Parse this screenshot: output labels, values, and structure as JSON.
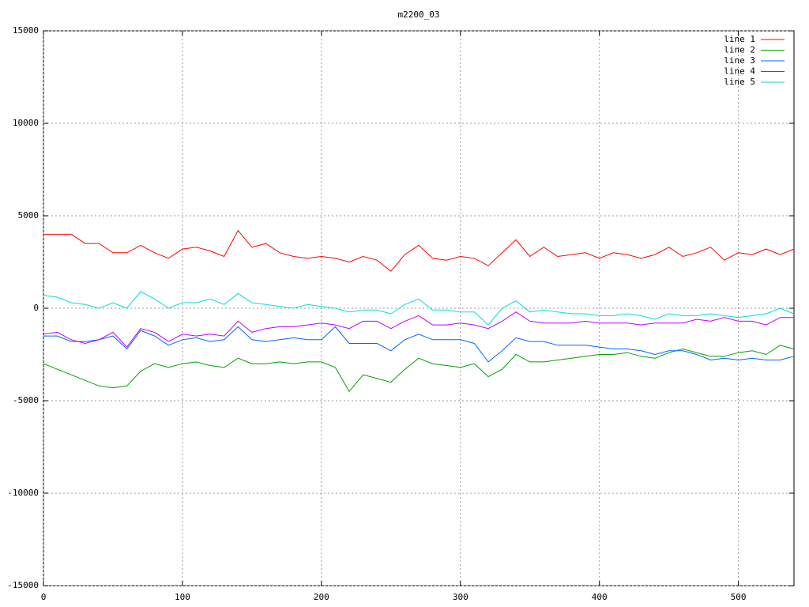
{
  "chart_data": {
    "type": "line",
    "title": "m2200_03",
    "x": [
      0,
      10,
      20,
      30,
      40,
      50,
      60,
      70,
      80,
      90,
      100,
      110,
      120,
      130,
      140,
      150,
      160,
      170,
      180,
      190,
      200,
      210,
      220,
      230,
      240,
      250,
      260,
      270,
      280,
      290,
      300,
      310,
      320,
      330,
      340,
      350,
      360,
      370,
      380,
      390,
      400,
      410,
      420,
      430,
      440,
      450,
      460,
      470,
      480,
      490,
      500,
      510,
      520,
      530,
      540
    ],
    "series": [
      {
        "name": "line 1",
        "color": "#ff0000",
        "values": [
          4000,
          4000,
          4000,
          3500,
          3500,
          3000,
          3000,
          3400,
          3000,
          2700,
          3200,
          3300,
          3100,
          2800,
          4200,
          3300,
          3500,
          3000,
          2800,
          2700,
          2800,
          2700,
          2500,
          2800,
          2600,
          2000,
          2900,
          3400,
          2700,
          2600,
          2800,
          2700,
          2300,
          3000,
          3700,
          2800,
          3300,
          2800,
          2900,
          3000,
          2700,
          3000,
          2900,
          2700,
          2900,
          3300,
          2800,
          3000,
          3300,
          2600,
          3000,
          2900,
          3200,
          2900,
          3200
        ]
      },
      {
        "name": "line 2",
        "color": "#00a000",
        "values": [
          -3000,
          -3300,
          -3600,
          -3900,
          -4200,
          -4300,
          -4200,
          -3400,
          -3000,
          -3200,
          -3000,
          -2900,
          -3100,
          -3200,
          -2700,
          -3000,
          -3000,
          -2900,
          -3000,
          -2900,
          -2900,
          -3200,
          -4500,
          -3600,
          -3800,
          -4000,
          -3300,
          -2700,
          -3000,
          -3100,
          -3200,
          -3000,
          -3700,
          -3300,
          -2500,
          -2900,
          -2900,
          -2800,
          -2700,
          -2600,
          -2500,
          -2500,
          -2400,
          -2600,
          -2700,
          -2400,
          -2200,
          -2400,
          -2600,
          -2600,
          -2400,
          -2300,
          -2500,
          -2000,
          -2200
        ]
      },
      {
        "name": "line 3",
        "color": "#0066ff",
        "values": [
          -1500,
          -1500,
          -1800,
          -1800,
          -1700,
          -1500,
          -2200,
          -1200,
          -1500,
          -2000,
          -1700,
          -1600,
          -1800,
          -1700,
          -1000,
          -1700,
          -1800,
          -1700,
          -1600,
          -1700,
          -1700,
          -1000,
          -1900,
          -1900,
          -1900,
          -2300,
          -1700,
          -1400,
          -1700,
          -1700,
          -1700,
          -1900,
          -2900,
          -2300,
          -1600,
          -1800,
          -1800,
          -2000,
          -2000,
          -2000,
          -2100,
          -2200,
          -2200,
          -2300,
          -2500,
          -2300,
          -2300,
          -2500,
          -2800,
          -2700,
          -2800,
          -2700,
          -2800,
          -2800,
          -2600
        ]
      },
      {
        "name": "line 4",
        "color": "#c000ff",
        "values": [
          -1400,
          -1300,
          -1700,
          -1900,
          -1700,
          -1300,
          -2100,
          -1100,
          -1300,
          -1800,
          -1400,
          -1500,
          -1400,
          -1500,
          -700,
          -1300,
          -1100,
          -1000,
          -1000,
          -900,
          -800,
          -900,
          -1100,
          -700,
          -700,
          -1100,
          -700,
          -400,
          -900,
          -900,
          -800,
          -900,
          -1100,
          -700,
          -200,
          -700,
          -800,
          -800,
          -800,
          -700,
          -800,
          -800,
          -800,
          -900,
          -800,
          -800,
          -800,
          -600,
          -700,
          -500,
          -700,
          -700,
          -900,
          -500,
          -500
        ]
      },
      {
        "name": "line 5",
        "color": "#00dddd",
        "values": [
          700,
          600,
          300,
          200,
          0,
          300,
          0,
          900,
          500,
          0,
          300,
          300,
          500,
          200,
          800,
          300,
          200,
          100,
          0,
          200,
          100,
          0,
          -200,
          -100,
          -100,
          -300,
          200,
          500,
          -100,
          -100,
          -200,
          -200,
          -900,
          0,
          400,
          -200,
          -100,
          -200,
          -300,
          -300,
          -400,
          -400,
          -300,
          -400,
          -600,
          -300,
          -400,
          -400,
          -300,
          -400,
          -500,
          -400,
          -300,
          0,
          -300
        ]
      }
    ],
    "xlim": [
      0,
      540
    ],
    "ylim": [
      -15000,
      15000
    ],
    "xticks": [
      0,
      100,
      200,
      300,
      400,
      500
    ],
    "yticks": [
      -15000,
      -10000,
      -5000,
      0,
      5000,
      10000,
      15000
    ],
    "grid": true,
    "legend": "top-right"
  }
}
